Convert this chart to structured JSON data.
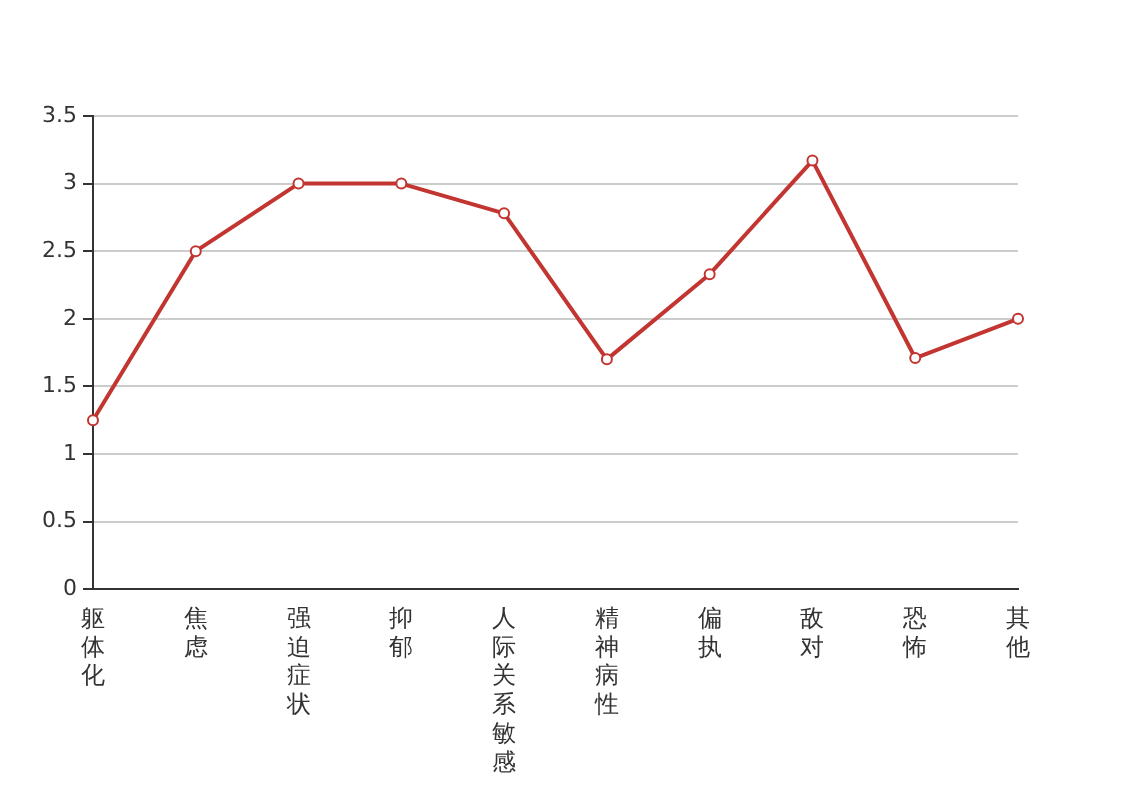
{
  "chart_data": {
    "type": "line",
    "categories": [
      "躯体化",
      "焦虑",
      "强迫症状",
      "抑郁",
      "人际关系敏感",
      "精神病性",
      "偏执",
      "敌对",
      "恐怖",
      "其他"
    ],
    "series": [
      {
        "color": "#c23531",
        "values": [
          1.25,
          2.5,
          3,
          3,
          2.78,
          1.7,
          2.33,
          3.17,
          1.71,
          2
        ]
      }
    ],
    "ylim": [
      0,
      3.5
    ],
    "yticks": [
      0,
      0.5,
      1,
      1.5,
      2,
      2.5,
      3,
      3.5
    ],
    "grid": "y",
    "marker": "circle",
    "line_style": "solid"
  }
}
